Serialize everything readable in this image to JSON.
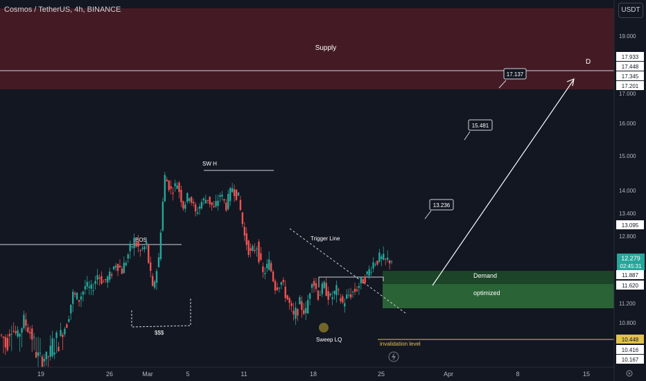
{
  "header": {
    "symbol_title": "Cosmos / TetherUS, 4h, BINANCE",
    "currency": "USDT"
  },
  "colors": {
    "background": "#131722",
    "up": "#26a69a",
    "down": "#ef5350",
    "supply": "#5c1f2a",
    "demand": "#1e4d2b",
    "demand_optimized": "#2c6b3a",
    "invalidation": "#e2c24d",
    "current_price": "#26a69a"
  },
  "chart_data": {
    "type": "candlestick",
    "timeframe": "4h",
    "y_axis": {
      "range": [
        10.1,
        20.0
      ],
      "ticks": [
        "19.000",
        "17.000",
        "16.000",
        "15.000",
        "14.000",
        "13.400",
        "12.800",
        "11.200",
        "10.800"
      ],
      "badges": [
        "17.933",
        "17.448",
        "17.345",
        "17.201",
        "13.095",
        "11.887",
        "11.620",
        "10.448",
        "10.416",
        "10.167"
      ]
    },
    "x_axis": {
      "ticks": [
        "19",
        "26",
        "Mar",
        "5",
        "11",
        "18",
        "25",
        "Apr",
        "8",
        "15"
      ]
    },
    "current_price": {
      "value": "12.279",
      "countdown": "02:45:31"
    },
    "candles_path": [
      10.55,
      10.45,
      10.7,
      10.5,
      10.85,
      10.6,
      10.3,
      10.2,
      10.25,
      10.45,
      10.55,
      10.8,
      11.4,
      11.3,
      11.6,
      11.5,
      11.9,
      11.7,
      11.85,
      12.2,
      12.0,
      12.4,
      12.7,
      12.45,
      12.6,
      11.5,
      12.3,
      14.4,
      14.0,
      14.2,
      13.6,
      13.9,
      13.4,
      13.7,
      13.8,
      13.5,
      13.9,
      13.6,
      14.1,
      13.8,
      12.8,
      12.4,
      12.6,
      11.9,
      12.2,
      11.6,
      11.7,
      11.3,
      10.9,
      11.2,
      11.0,
      11.8,
      11.4,
      11.6,
      11.3,
      11.5,
      11.2,
      11.4,
      11.5,
      11.7,
      11.9,
      12.2,
      12.3,
      12.25,
      12.28
    ],
    "zones": [
      {
        "name": "supply",
        "label": "Supply",
        "from": 17.05,
        "to": 19.85
      },
      {
        "name": "demand",
        "label": "Demand",
        "from": 11.62,
        "to": 11.887
      },
      {
        "name": "demand-optimized",
        "label": "optimized",
        "from": 11.1,
        "to": 11.62
      }
    ],
    "levels": [
      {
        "name": "target-line",
        "value": 17.345
      },
      {
        "name": "invalidation-level",
        "label": "invalidation level",
        "value": 10.448
      }
    ],
    "annotations": {
      "sw_h": "SW H",
      "bos": "BOS",
      "sss": "$$$",
      "trigger_line": "Trigger Line",
      "sweep_lq": "Sweep LQ",
      "point_d": "D",
      "targets": [
        "17.137",
        "15.481",
        "13.236"
      ]
    }
  }
}
